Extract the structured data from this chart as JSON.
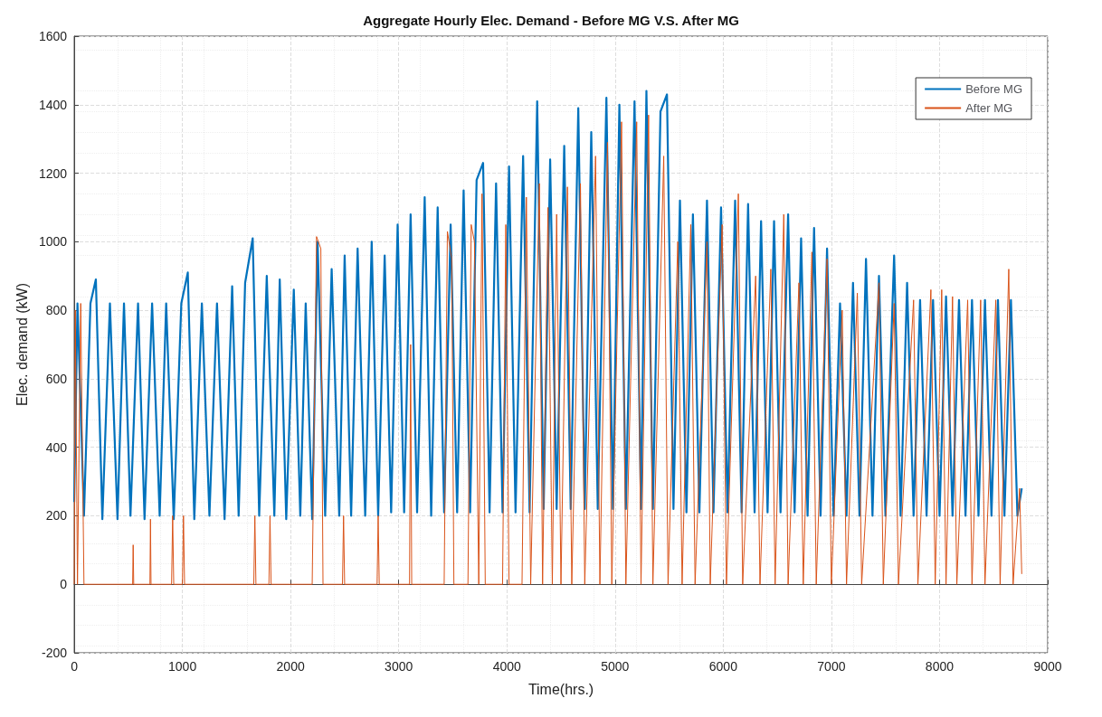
{
  "chart_data": {
    "type": "line",
    "title": "Aggregate Hourly Elec. Demand - Before MG V.S. After MG",
    "xlabel": "Time(hrs.)",
    "ylabel": "Elec. demand (kW)",
    "xlim": [
      0,
      9000
    ],
    "xticks": [
      0,
      1000,
      2000,
      3000,
      4000,
      5000,
      6000,
      7000,
      8000,
      9000
    ],
    "ylim": [
      -200,
      1600
    ],
    "yticks": [
      -200,
      0,
      200,
      400,
      600,
      800,
      1000,
      1200,
      1400,
      1600
    ],
    "grid": true,
    "legend": "top right",
    "marker": "none",
    "line_style": "solid",
    "series": [
      {
        "name": "Before MG",
        "color": "#0072bd",
        "x": [
          0,
          30,
          90,
          150,
          200,
          260,
          330,
          400,
          460,
          520,
          590,
          650,
          720,
          790,
          850,
          920,
          990,
          1050,
          1110,
          1180,
          1250,
          1320,
          1390,
          1460,
          1520,
          1580,
          1650,
          1710,
          1780,
          1850,
          1900,
          1960,
          2030,
          2090,
          2140,
          2200,
          2250,
          2320,
          2380,
          2450,
          2500,
          2560,
          2620,
          2690,
          2750,
          2810,
          2870,
          2930,
          2990,
          3050,
          3110,
          3170,
          3240,
          3300,
          3360,
          3420,
          3480,
          3540,
          3600,
          3660,
          3720,
          3780,
          3840,
          3900,
          3960,
          4020,
          4080,
          4150,
          4210,
          4280,
          4340,
          4400,
          4460,
          4530,
          4590,
          4660,
          4720,
          4780,
          4840,
          4920,
          4980,
          5040,
          5100,
          5180,
          5240,
          5290,
          5350,
          5420,
          5480,
          5540,
          5600,
          5660,
          5720,
          5780,
          5850,
          5910,
          5980,
          6040,
          6110,
          6170,
          6230,
          6290,
          6350,
          6410,
          6470,
          6530,
          6600,
          6660,
          6720,
          6780,
          6840,
          6900,
          6960,
          7020,
          7080,
          7140,
          7200,
          7260,
          7320,
          7380,
          7440,
          7500,
          7580,
          7640,
          7700,
          7760,
          7820,
          7880,
          7940,
          8000,
          8060,
          8120,
          8180,
          8240,
          8300,
          8360,
          8420,
          8480,
          8540,
          8600,
          8660,
          8720,
          8760
        ],
        "values": [
          240,
          820,
          200,
          820,
          890,
          190,
          820,
          190,
          820,
          200,
          820,
          190,
          820,
          200,
          820,
          190,
          820,
          910,
          190,
          820,
          200,
          820,
          190,
          870,
          200,
          880,
          1010,
          200,
          900,
          200,
          890,
          190,
          860,
          200,
          820,
          190,
          1000,
          200,
          920,
          200,
          960,
          200,
          980,
          200,
          1000,
          200,
          960,
          210,
          1050,
          210,
          1080,
          210,
          1130,
          200,
          1100,
          210,
          1050,
          210,
          1150,
          210,
          1180,
          1230,
          210,
          1170,
          210,
          1220,
          210,
          1250,
          210,
          1410,
          220,
          1240,
          220,
          1280,
          220,
          1390,
          220,
          1320,
          220,
          1420,
          220,
          1400,
          220,
          1410,
          220,
          1440,
          220,
          1380,
          1430,
          220,
          1120,
          210,
          1080,
          210,
          1120,
          210,
          1100,
          210,
          1120,
          210,
          1110,
          210,
          1060,
          210,
          1060,
          210,
          1080,
          210,
          1010,
          200,
          1040,
          200,
          980,
          200,
          820,
          200,
          880,
          200,
          950,
          200,
          900,
          200,
          960,
          200,
          880,
          200,
          830,
          200,
          830,
          200,
          840,
          200,
          830,
          200,
          830,
          200,
          830,
          200,
          830,
          200,
          830,
          200,
          280
        ]
      },
      {
        "name": "After MG",
        "color": "#d95319",
        "x": [
          0,
          10,
          30,
          60,
          90,
          540,
          545,
          550,
          700,
          705,
          710,
          900,
          910,
          920,
          1000,
          1010,
          1020,
          1660,
          1670,
          1680,
          1800,
          1810,
          1820,
          2200,
          2240,
          2280,
          2300,
          2480,
          2490,
          2500,
          2800,
          2810,
          2820,
          3100,
          3110,
          3120,
          3420,
          3450,
          3490,
          3510,
          3640,
          3670,
          3700,
          3740,
          3770,
          3800,
          3960,
          3990,
          4020,
          4140,
          4180,
          4220,
          4300,
          4330,
          4380,
          4420,
          4460,
          4500,
          4560,
          4600,
          4680,
          4720,
          4820,
          4860,
          4930,
          4970,
          5060,
          5100,
          5200,
          5240,
          5310,
          5350,
          5450,
          5490,
          5580,
          5620,
          5700,
          5740,
          5850,
          5880,
          5990,
          6030,
          6140,
          6180,
          6300,
          6340,
          6440,
          6480,
          6560,
          6600,
          6700,
          6740,
          6820,
          6860,
          6960,
          7000,
          7100,
          7140,
          7240,
          7280,
          7440,
          7480,
          7580,
          7620,
          7760,
          7800,
          7920,
          7960,
          8020,
          8060,
          8120,
          8160,
          8260,
          8300,
          8380,
          8420,
          8520,
          8560,
          8640,
          8680,
          8740,
          8760
        ],
        "values": [
          0,
          800,
          0,
          820,
          0,
          0,
          115,
          0,
          0,
          190,
          0,
          0,
          200,
          0,
          0,
          200,
          0,
          0,
          200,
          0,
          0,
          200,
          0,
          0,
          1015,
          980,
          0,
          0,
          200,
          0,
          0,
          200,
          0,
          0,
          700,
          0,
          0,
          1030,
          950,
          0,
          0,
          1050,
          1000,
          0,
          1140,
          0,
          0,
          1050,
          0,
          0,
          1130,
          0,
          1170,
          0,
          1100,
          0,
          1080,
          0,
          1160,
          0,
          1170,
          0,
          1250,
          0,
          1290,
          0,
          1350,
          0,
          1350,
          0,
          1370,
          0,
          1250,
          0,
          1000,
          0,
          1050,
          0,
          1000,
          0,
          1050,
          0,
          1140,
          0,
          900,
          0,
          920,
          0,
          1080,
          0,
          880,
          0,
          970,
          0,
          950,
          0,
          800,
          0,
          850,
          0,
          880,
          0,
          820,
          0,
          830,
          0,
          860,
          0,
          860,
          0,
          840,
          0,
          830,
          0,
          830,
          0,
          830,
          0,
          920,
          0,
          280,
          30
        ]
      }
    ]
  }
}
